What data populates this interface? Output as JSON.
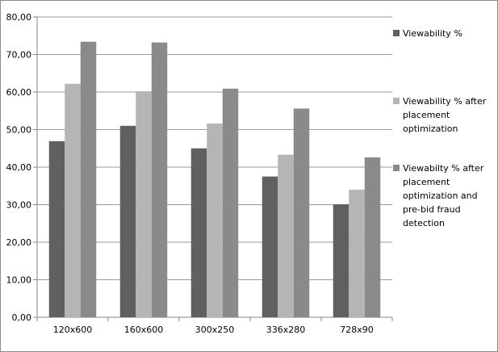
{
  "chart_data": {
    "type": "bar",
    "title": "",
    "xlabel": "",
    "ylabel": "",
    "ylim": [
      0,
      80
    ],
    "yticks": [
      "0,00",
      "10,00",
      "20,00",
      "30,00",
      "40,00",
      "50,00",
      "60,00",
      "70,00",
      "80,00"
    ],
    "grid": "horizontal",
    "legend_position": "right",
    "categories": [
      "120x600",
      "160x600",
      "300x250",
      "336x280",
      "728x90"
    ],
    "series": [
      {
        "name": "Viewability %",
        "legend_lines": [
          "Viewability %"
        ],
        "color": "#606060",
        "values": [
          46.9,
          51.0,
          45.0,
          37.5,
          30.1
        ]
      },
      {
        "name": "Viewability % after placement optimization",
        "legend_lines": [
          "Viewability % after",
          "placement",
          "optimization"
        ],
        "color": "#b5b5b5",
        "values": [
          62.2,
          60.2,
          51.6,
          43.3,
          34.0
        ]
      },
      {
        "name": "Viewabilty % after placement optimization and pre-bid fraud detection",
        "legend_lines": [
          "Viewabilty % after",
          "placement",
          "optimization and",
          "pre-bid fraud",
          "detection"
        ],
        "color": "#8a8a8a",
        "values": [
          73.4,
          73.2,
          60.9,
          55.6,
          42.6
        ]
      }
    ]
  }
}
